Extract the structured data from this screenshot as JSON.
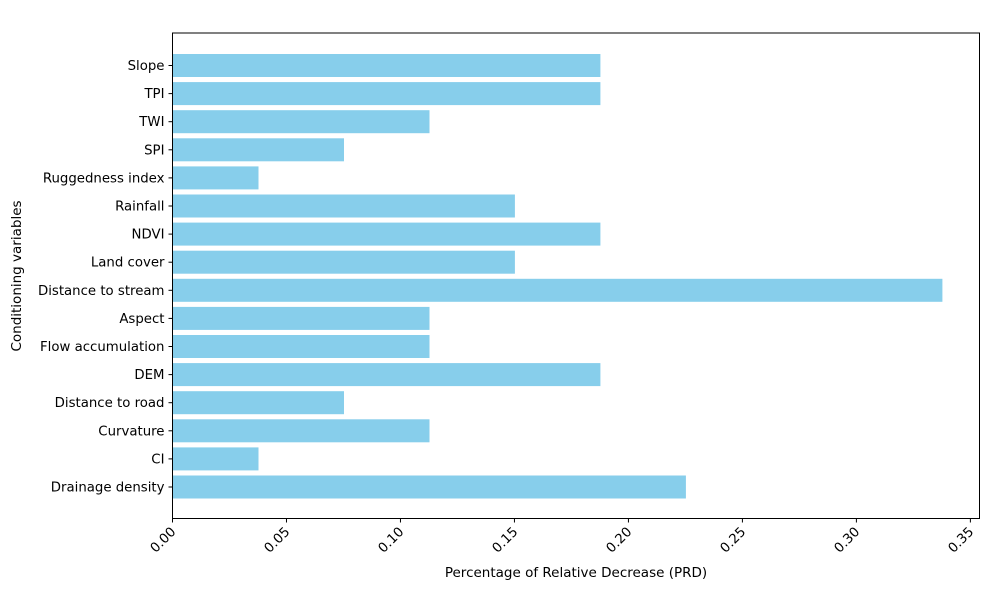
{
  "chart_data": {
    "type": "bar",
    "orientation": "horizontal",
    "title": "",
    "xlabel": "Percentage of Relative Decrease (PRD)",
    "ylabel": "Conditioning variables",
    "categories": [
      "Slope",
      "TPI",
      "TWI",
      "SPI",
      "Ruggedness index",
      "Rainfall",
      "NDVI",
      "Land cover",
      "Distance to stream",
      "Aspect",
      "Flow accumulation",
      "DEM",
      "Distance to road",
      "Curvature",
      "CI",
      "Drainage density"
    ],
    "values": [
      0.1875,
      0.1875,
      0.1125,
      0.075,
      0.0375,
      0.15,
      0.1875,
      0.15,
      0.3375,
      0.1125,
      0.1125,
      0.1875,
      0.075,
      0.1125,
      0.0375,
      0.225
    ],
    "xlim": [
      0,
      0.354
    ],
    "xticks": [
      0.0,
      0.05,
      0.1,
      0.15,
      0.2,
      0.25,
      0.3,
      0.35
    ],
    "xtick_labels": [
      "0.00",
      "0.05",
      "0.10",
      "0.15",
      "0.20",
      "0.25",
      "0.30",
      "0.35"
    ],
    "xtick_rotation": 45,
    "bar_color": "#87CEEB",
    "grid": false,
    "legend": null
  }
}
